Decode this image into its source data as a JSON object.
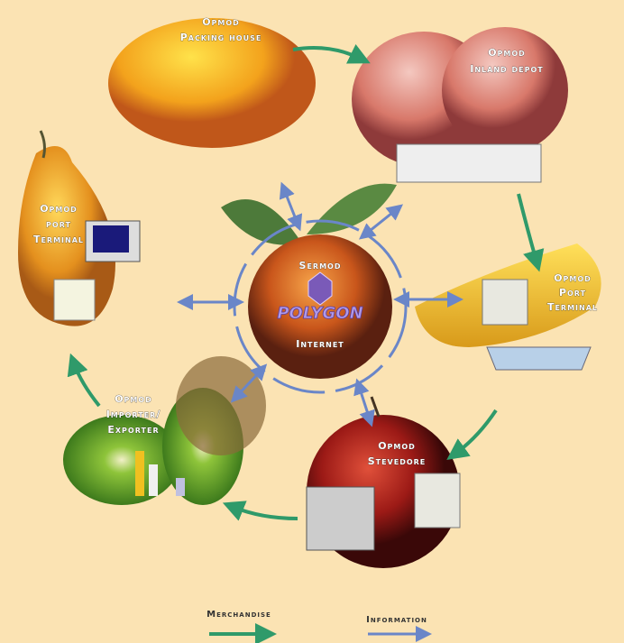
{
  "nodes": [
    {
      "label": [
        "Opmod",
        "Packing house"
      ]
    },
    {
      "label": [
        "Opmod",
        "Inland depot"
      ]
    },
    {
      "label": [
        "Opmod",
        "Port",
        "Terminal"
      ]
    },
    {
      "label": [
        "Opmod",
        "Stevedore"
      ]
    },
    {
      "label": [
        "Opmod",
        "Importer/",
        "Exporter"
      ]
    },
    {
      "label": [
        "Opmod",
        "port",
        "Terminal"
      ]
    }
  ],
  "center": {
    "title": "Sermod",
    "logo": "POLYGON",
    "subtitle": "Internet"
  },
  "legend": [
    {
      "label": "Merchandise"
    },
    {
      "label": "Information"
    }
  ]
}
